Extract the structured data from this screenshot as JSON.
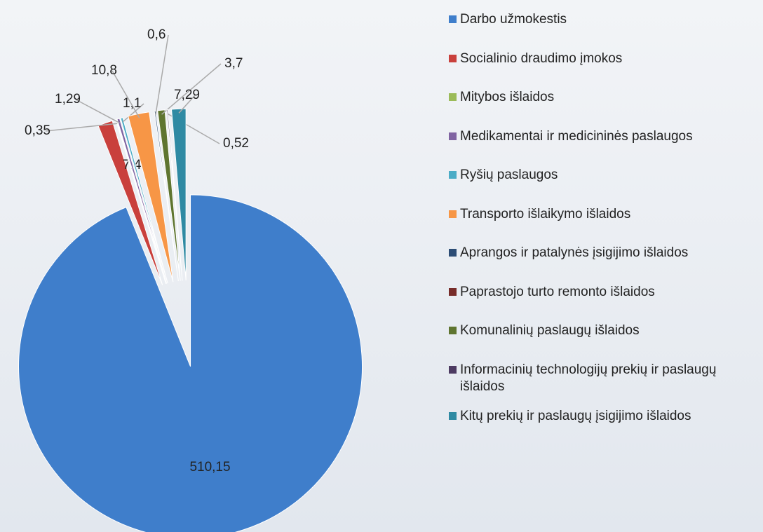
{
  "chart_data": {
    "type": "pie",
    "categories": [
      "Darbo užmokestis",
      "Socialinio draudimo įmokos",
      "Mitybos išlaidos",
      "Medikamentai ir medicininės paslaugos",
      "Ryšių paslaugos",
      "Transporto išlaikymo išlaidos",
      "Aprangos ir patalynės įsigijimo išlaidos",
      "Paprastojo turto remonto išlaidos",
      "Komunalinių paslaugų išlaidos",
      "Informacinių technologijų prekių ir paslaugų išlaidos",
      "Kitų prekių ir paslaugų įsigijimo išlaidos"
    ],
    "values": [
      510.15,
      7.48,
      0.35,
      1.29,
      1.1,
      10.8,
      0.6,
      null,
      3.7,
      0.52,
      7.29
    ],
    "value_labels": [
      "510,15",
      "7,48",
      "0,35",
      "1,29",
      "1,1",
      "10,8",
      "0,6",
      null,
      "3,7",
      "0,52",
      "7,29"
    ],
    "colors": [
      "#3f7ecb",
      "#c9403c",
      "#9bbb59",
      "#8064a2",
      "#4bacc6",
      "#f79646",
      "#2c4d75",
      "#772c2a",
      "#5f7530",
      "#4d3b62",
      "#2f8aa3"
    ],
    "legend": "right"
  }
}
